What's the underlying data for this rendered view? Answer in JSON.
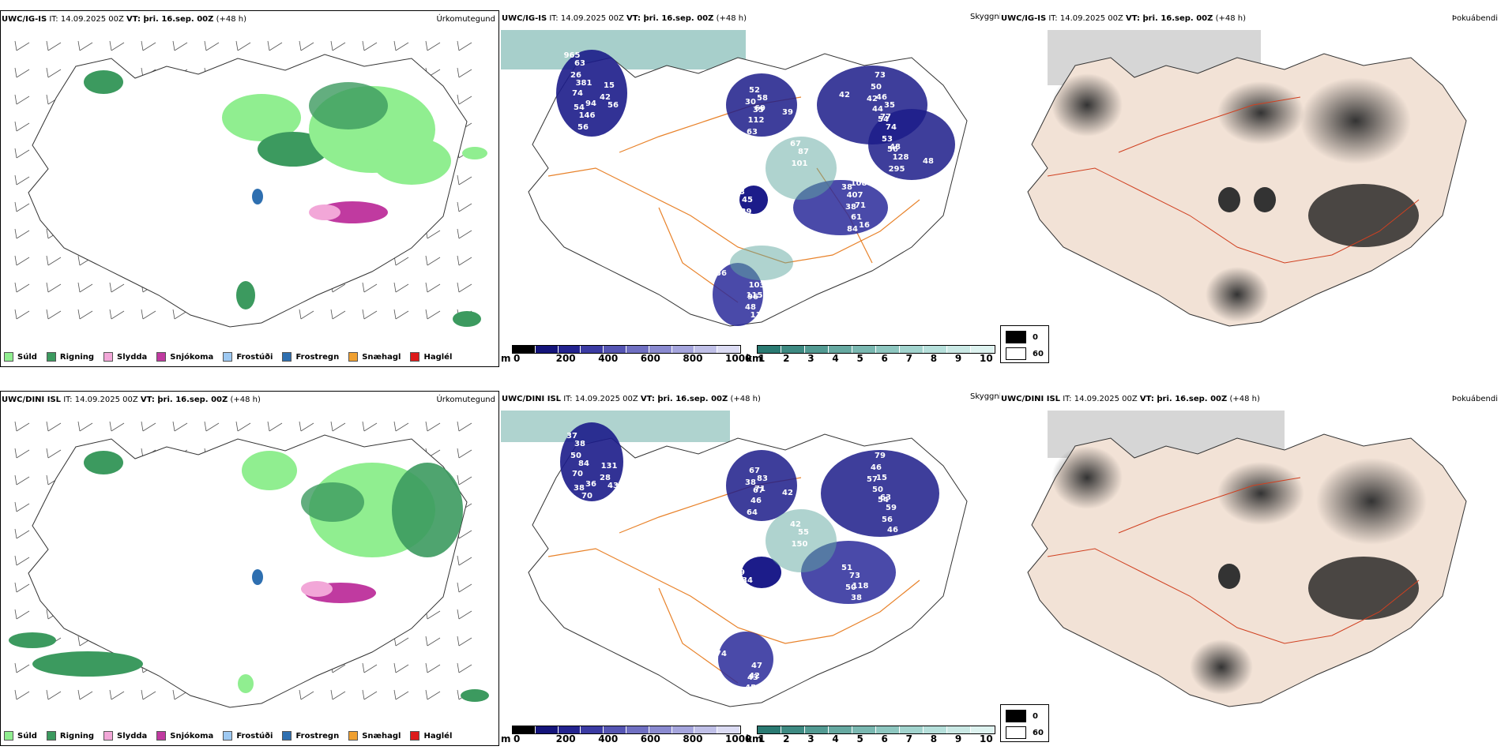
{
  "rows": [
    {
      "model": "UWC/IG-IS",
      "it": " IT: 14.09.2025 00Z ",
      "vt_label": "VT:",
      "vt_value": " þri. 16.sep. 00Z",
      "lead": " (+48 h)",
      "precip_labels": [
        "965",
        "42",
        "54",
        "30",
        "39",
        "42",
        "44",
        "54",
        "48",
        "38",
        "84",
        "43",
        "96",
        "48",
        "67",
        "26",
        "15",
        "56",
        "52",
        "63",
        "50",
        "46",
        "53",
        "56",
        "38",
        "61",
        "129",
        "103",
        "115",
        "101",
        "63",
        "56",
        "146",
        "35",
        "112",
        "73",
        "77",
        "74",
        "295",
        "407",
        "71",
        "45",
        "56",
        "117",
        "87",
        "381",
        "74",
        "94",
        "58",
        "69",
        "42",
        "35",
        "48",
        "128",
        "108",
        "16"
      ]
    },
    {
      "model": "UWC/DINI ISL",
      "it": " IT: 14.09.2025 00Z ",
      "vt_label": "VT:",
      "vt_value": " þri. 16.sep. 00Z",
      "lead": " (+48 h)",
      "precip_labels": [
        "37",
        "28",
        "38",
        "38",
        "42",
        "57",
        "50",
        "54",
        "93",
        "51",
        "32",
        "39",
        "43",
        "45",
        "42",
        "50",
        "131",
        "49",
        "67",
        "64",
        "46",
        "15",
        "56",
        "46",
        "50",
        "38",
        "43",
        "47",
        "42",
        "150",
        "38",
        "43",
        "70",
        "67",
        "46",
        "79",
        "63",
        "59",
        "47",
        "73",
        "118",
        "34",
        "74",
        "83",
        "55",
        "84",
        "70",
        "36",
        "83",
        "71"
      ]
    }
  ],
  "panel_titles": {
    "precip_type": "Úrkomutegund",
    "clouds": "Skyggni",
    "fog": "Þokuábendi"
  },
  "precip_legend": [
    {
      "label": "Súld",
      "color": "#90ee90"
    },
    {
      "label": "Rigning",
      "color": "#3c9a5f"
    },
    {
      "label": "Slydda",
      "color": "#f2a7d8"
    },
    {
      "label": "Snjókoma",
      "color": "#c03aa0"
    },
    {
      "label": "Frostúði",
      "color": "#9ec9f2"
    },
    {
      "label": "Frostregn",
      "color": "#2e6fb0"
    },
    {
      "label": "Snæhagl",
      "color": "#f0a030"
    },
    {
      "label": "Haglél",
      "color": "#dd1a1a"
    }
  ],
  "cbar_m": {
    "unit": "m",
    "ticks": [
      "0",
      "200",
      "400",
      "600",
      "800",
      "1000"
    ],
    "colors": [
      "#000000",
      "#14147a",
      "#23238f",
      "#3b3ba3",
      "#5555b3",
      "#7070c2",
      "#8a8ad0",
      "#a5a5dd",
      "#c0c0e8",
      "#dcdcf4"
    ]
  },
  "cbar_km": {
    "unit": "km",
    "ticks": [
      "1",
      "2",
      "3",
      "4",
      "5",
      "6",
      "7",
      "8",
      "9",
      "10"
    ],
    "colors": [
      "#2a7a72",
      "#3e8a82",
      "#529a92",
      "#66a9a1",
      "#7ab8b1",
      "#8ec7c0",
      "#a2d4ce",
      "#b6e0db",
      "#cae9e5",
      "#def3f0"
    ]
  },
  "fog_legend": [
    {
      "label": "0",
      "color": "#000000"
    },
    {
      "label": "60",
      "color": "#ffffff"
    }
  ]
}
